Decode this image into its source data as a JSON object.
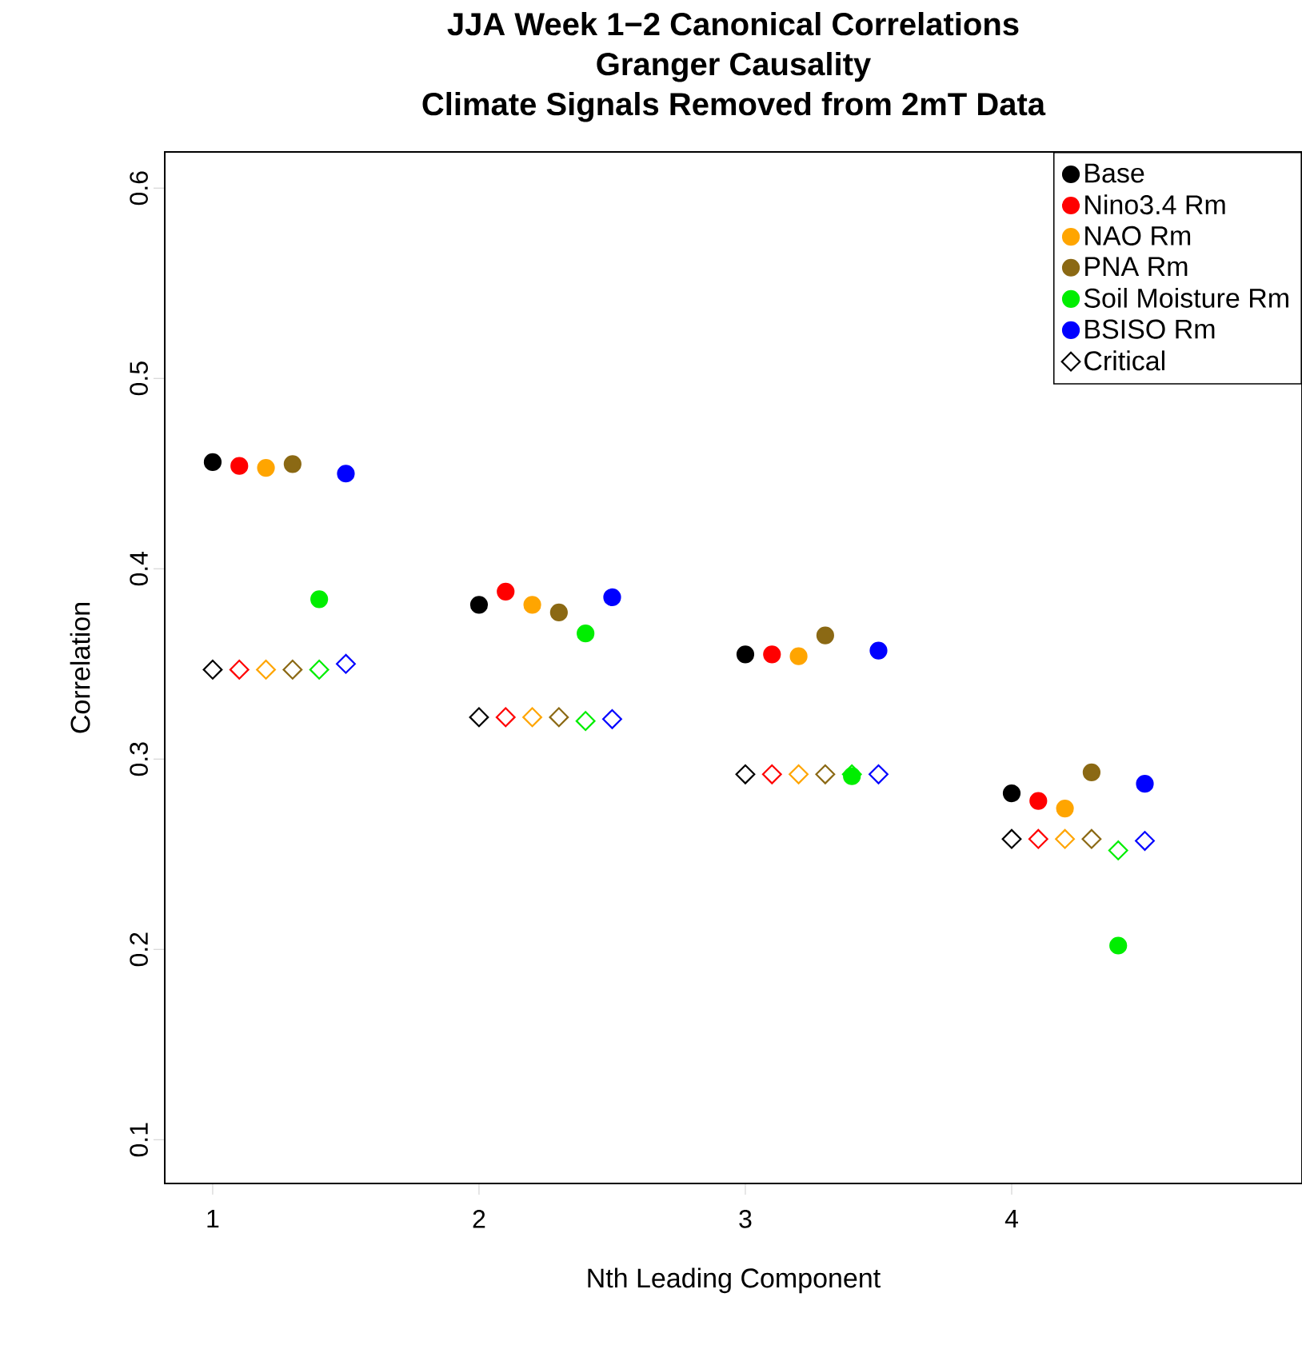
{
  "chart_data": {
    "type": "scatter",
    "title": "JJA Week 1−2 Canonical Correlations",
    "subtitle": "Granger Causality",
    "annotations": [
      "Climate Signals Removed from 2mT Data"
    ],
    "xlabel": "Nth Leading Component",
    "ylabel": "Correlation",
    "xlim": [
      0.82,
      5.09
    ],
    "ylim": [
      0.077,
      0.619
    ],
    "xticks": [
      1,
      2,
      3,
      4
    ],
    "yticks": [
      0.1,
      0.2,
      0.3,
      0.4,
      0.5,
      0.6
    ],
    "grid": false,
    "legend": "top right",
    "series": [
      {
        "name": "Base",
        "color": "#000000",
        "marker": "circle",
        "x": [
          1,
          2,
          3,
          4
        ],
        "values": [
          0.456,
          0.381,
          0.355,
          0.282
        ]
      },
      {
        "name": "Nino3.4 Rm",
        "color": "#ff0000",
        "marker": "circle",
        "x": [
          1.1,
          2.1,
          3.1,
          4.1
        ],
        "values": [
          0.454,
          0.388,
          0.355,
          0.278
        ]
      },
      {
        "name": "NAO Rm",
        "color": "#ffa500",
        "marker": "circle",
        "x": [
          1.2,
          2.2,
          3.2,
          4.2
        ],
        "values": [
          0.453,
          0.381,
          0.354,
          0.274
        ]
      },
      {
        "name": "PNA Rm",
        "color": "#8b6914",
        "marker": "circle",
        "x": [
          1.3,
          2.3,
          3.3,
          4.3
        ],
        "values": [
          0.455,
          0.377,
          0.365,
          0.293
        ]
      },
      {
        "name": "Soil Moisture Rm",
        "color": "#00ee00",
        "marker": "circle",
        "x": [
          1.4,
          2.4,
          3.4,
          4.4
        ],
        "values": [
          0.384,
          0.366,
          0.291,
          0.202
        ]
      },
      {
        "name": "BSISO Rm",
        "color": "#0000ff",
        "marker": "circle",
        "x": [
          1.5,
          2.5,
          3.5,
          4.5
        ],
        "values": [
          0.45,
          0.385,
          0.357,
          0.287
        ]
      },
      {
        "name": "Critical",
        "color": "#000000",
        "marker": "diamond",
        "x": [
          1,
          2,
          3,
          4
        ],
        "values": [
          0.347,
          0.322,
          0.292,
          0.258
        ]
      },
      {
        "color": "#ff0000",
        "marker": "diamond",
        "x": [
          1.1,
          2.1,
          3.1,
          4.1
        ],
        "values": [
          0.347,
          0.322,
          0.292,
          0.258
        ]
      },
      {
        "color": "#ffa500",
        "marker": "diamond",
        "x": [
          1.2,
          2.2,
          3.2,
          4.2
        ],
        "values": [
          0.347,
          0.322,
          0.292,
          0.258
        ]
      },
      {
        "color": "#8b6914",
        "marker": "diamond",
        "x": [
          1.3,
          2.3,
          3.3,
          4.3
        ],
        "values": [
          0.347,
          0.322,
          0.292,
          0.258
        ]
      },
      {
        "color": "#00ee00",
        "marker": "diamond",
        "x": [
          1.4,
          2.4,
          3.4,
          4.4
        ],
        "values": [
          0.347,
          0.32,
          0.292,
          0.252
        ]
      },
      {
        "color": "#0000ff",
        "marker": "diamond",
        "x": [
          1.5,
          2.5,
          3.5,
          4.5
        ],
        "values": [
          0.35,
          0.321,
          0.292,
          0.257
        ]
      }
    ]
  }
}
